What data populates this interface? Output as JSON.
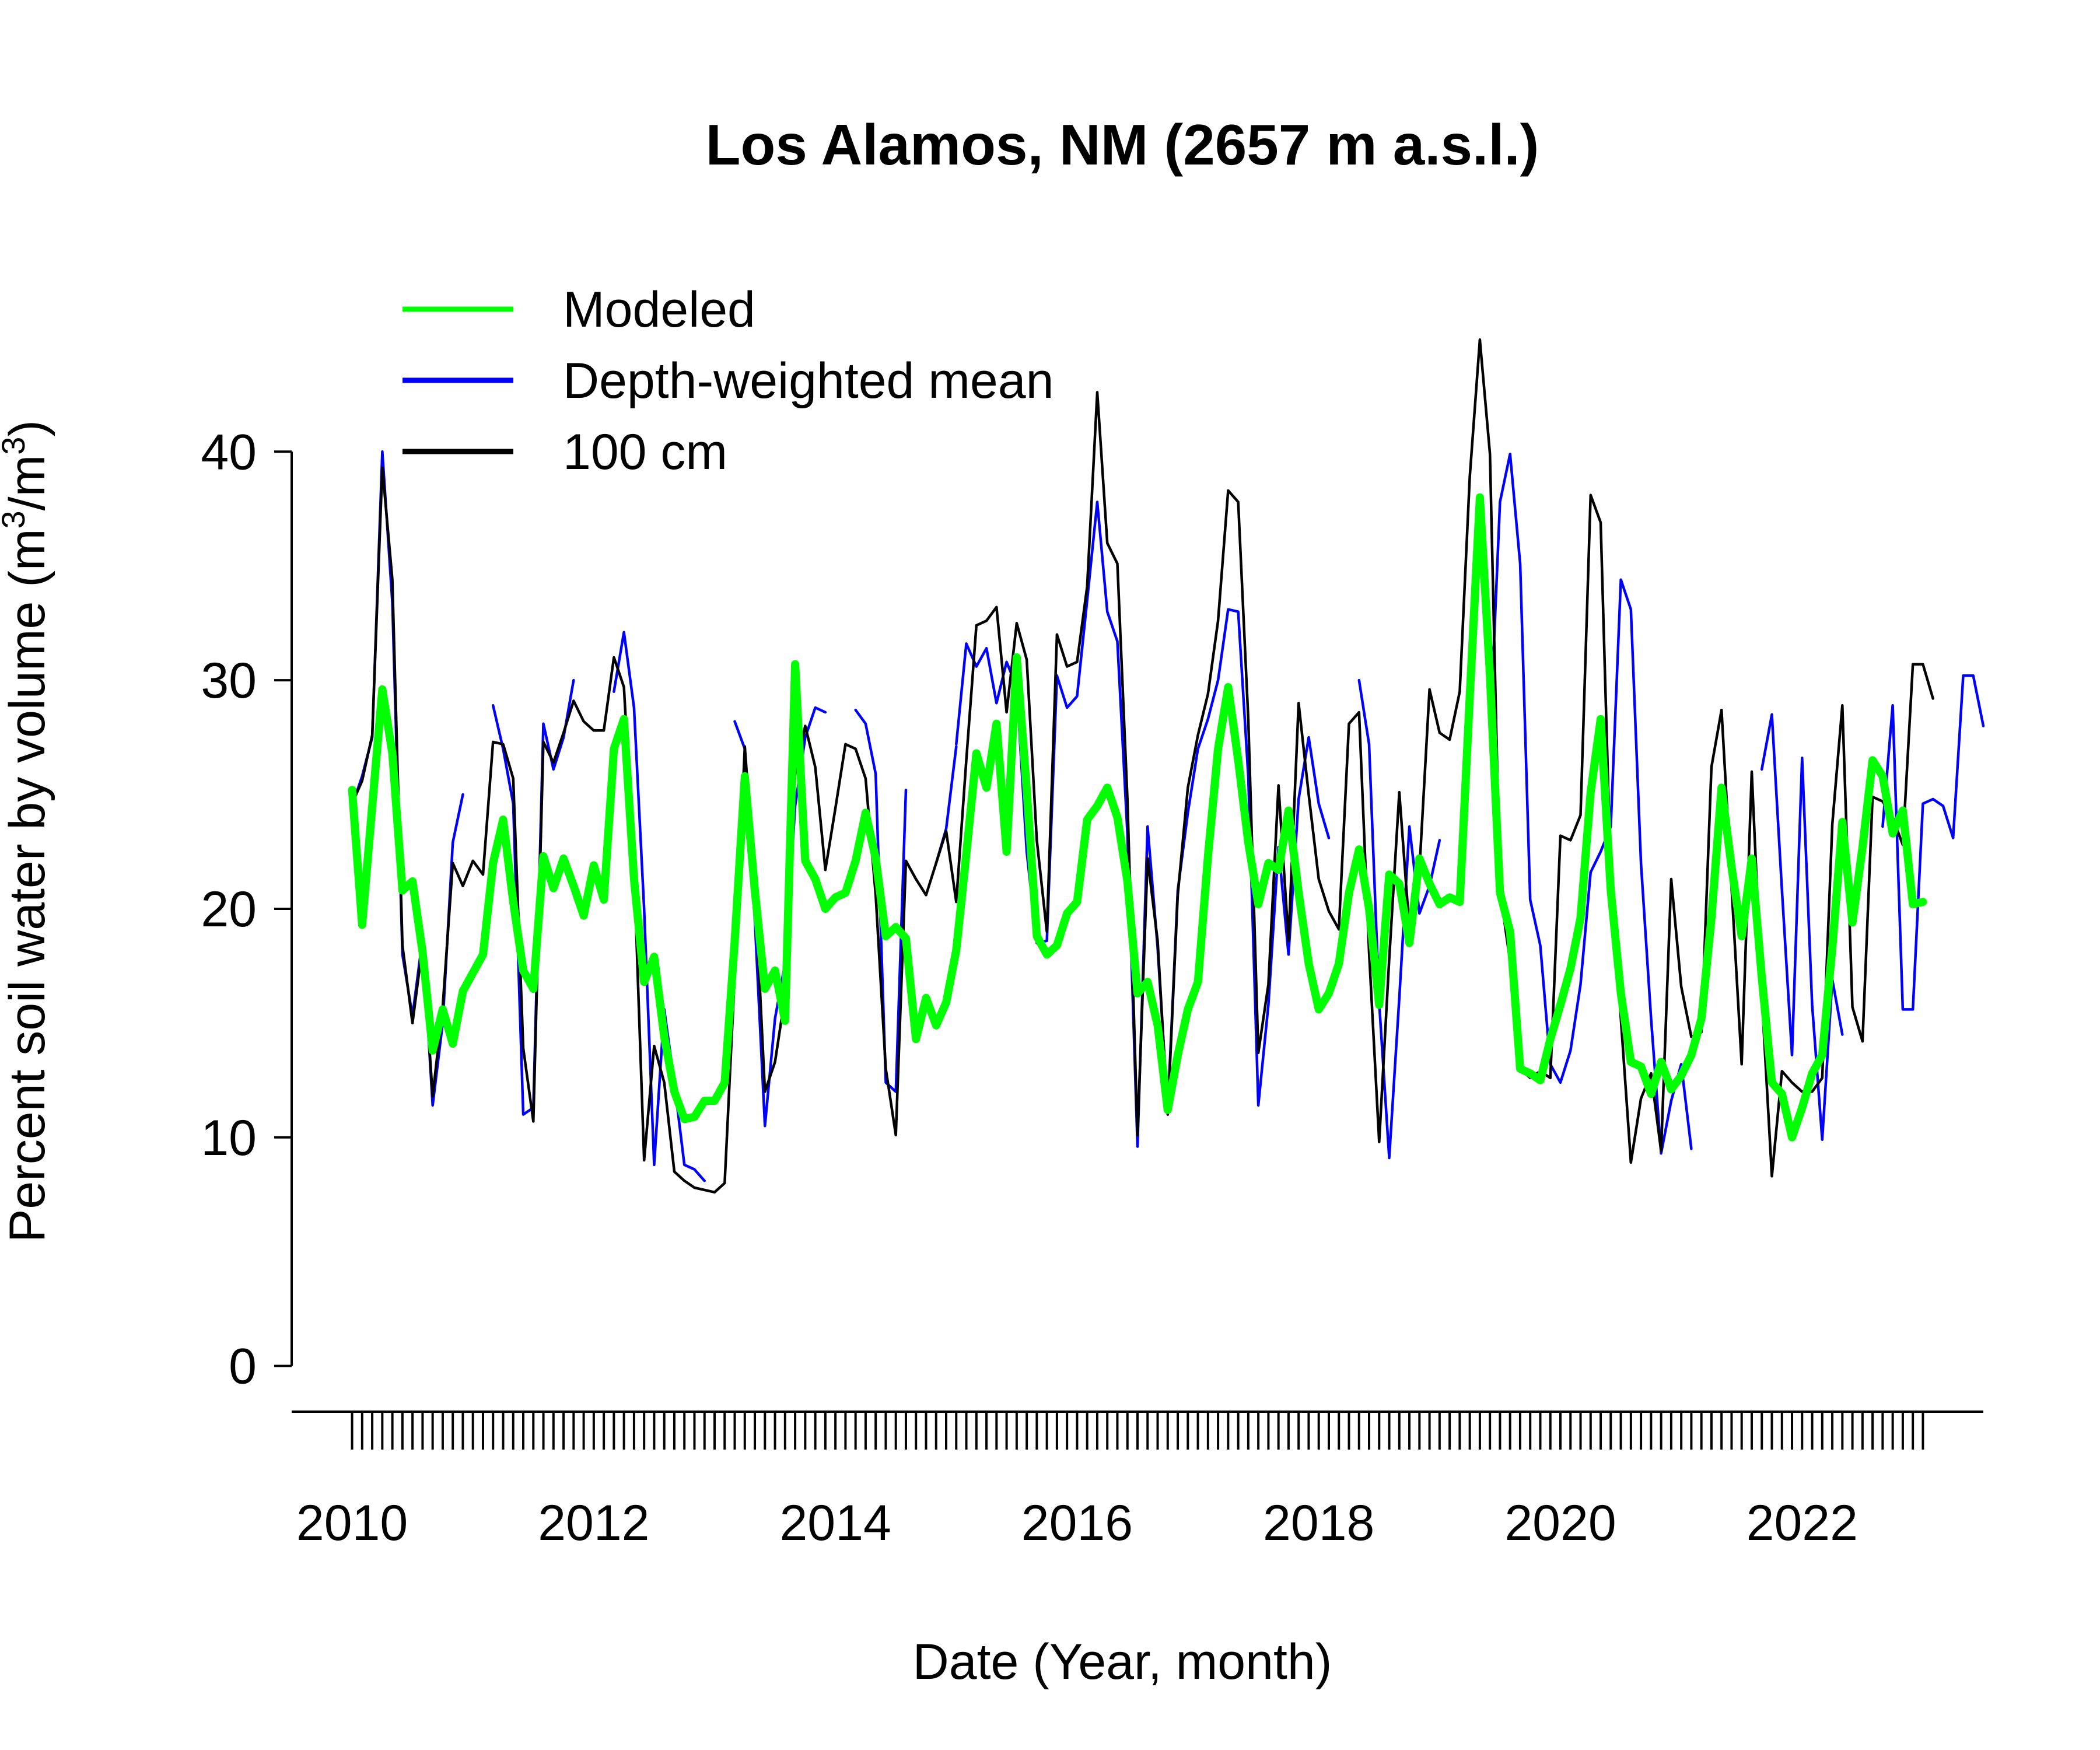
{
  "chart_data": {
    "type": "line",
    "title": "Los Alamos, NM (2657 m a.s.l.)",
    "xlabel": "Date (Year, month)",
    "ylabel": {
      "prefix": "Percent soil water by volume (m",
      "sup1": "3",
      "mid": "/m",
      "sup2": "3",
      "suffix": ")"
    },
    "xlim": [
      2009.5,
      2023.5
    ],
    "ylim": [
      -2,
      47
    ],
    "x_ticks": [
      2010,
      2012,
      2014,
      2016,
      2018,
      2020,
      2022
    ],
    "x_tick_labels": [
      "2010",
      "2012",
      "2014",
      "2016",
      "2018",
      "2020",
      "2022"
    ],
    "y_ticks": [
      0,
      10,
      20,
      30,
      40
    ],
    "y_tick_labels": [
      "0",
      "10",
      "20",
      "30",
      "40"
    ],
    "minor_x_ticks": {
      "start": 2010.0,
      "end": 2023.0,
      "step": 0.0833333333
    },
    "legend": {
      "position": "top-left"
    },
    "grid": false,
    "series": [
      {
        "name": "Modeled",
        "color": "#00ff00",
        "style": "thick",
        "x_start": 2010.0,
        "x_step": 0.0833333333,
        "values": [
          25.2,
          19.3,
          24.5,
          29.6,
          26.8,
          20.8,
          21.2,
          18.1,
          13.8,
          15.6,
          14.1,
          16.4,
          17.2,
          18.0,
          22.0,
          23.9,
          20.3,
          17.3,
          16.5,
          22.3,
          20.9,
          22.2,
          21.0,
          19.7,
          21.9,
          20.4,
          27.0,
          28.3,
          21.3,
          16.8,
          17.9,
          14.4,
          12.0,
          10.8,
          10.9,
          11.6,
          11.6,
          12.4,
          18.6,
          25.8,
          20.8,
          16.5,
          17.3,
          15.1,
          30.7,
          22.1,
          21.3,
          20.0,
          20.5,
          20.7,
          22.1,
          24.2,
          22.2,
          18.8,
          19.2,
          18.7,
          14.3,
          16.1,
          14.9,
          15.9,
          18.2,
          22.4,
          26.8,
          25.3,
          28.1,
          22.5,
          31.0,
          25.2,
          18.8,
          18.0,
          18.4,
          19.8,
          20.3,
          23.9,
          24.5,
          25.3,
          24.0,
          21.2,
          16.3,
          16.8,
          14.9,
          11.2,
          13.6,
          15.6,
          16.8,
          22.3,
          27.0,
          29.7,
          26.5,
          22.9,
          20.2,
          22.0,
          21.7,
          24.3,
          20.7,
          17.6,
          15.6,
          16.3,
          17.6,
          20.7,
          22.6,
          20.0,
          15.8,
          21.5,
          21.1,
          18.5,
          22.2,
          21.1,
          20.2,
          20.5,
          20.3,
          29.3,
          38.0,
          30.2,
          20.7,
          19.0,
          13.0,
          12.8,
          12.5,
          14.3,
          15.8,
          17.4,
          19.6,
          25.1,
          28.3,
          20.8,
          16.3,
          13.3,
          13.1,
          11.9,
          13.3,
          12.1,
          12.7,
          13.6,
          15.2,
          19.6,
          25.3,
          21.8,
          18.8,
          22.2,
          17.0,
          12.4,
          11.9,
          10.0,
          11.3,
          12.8,
          13.6,
          18.3,
          23.8,
          19.4,
          22.7,
          26.5,
          25.8,
          23.3,
          24.3,
          20.2,
          20.3
        ]
      },
      {
        "name": "Depth-weighted mean",
        "color": "#0000ff",
        "style": "thin",
        "x_start": 2010.0,
        "x_step": 0.0833333333,
        "values": [
          24.5,
          25.8,
          27.5,
          40.0,
          33.4,
          18.0,
          15.3,
          18.7,
          11.4,
          15.0,
          22.9,
          25.0,
          null,
          null,
          28.9,
          27.0,
          24.6,
          11.0,
          11.3,
          28.1,
          26.1,
          27.5,
          30.0,
          null,
          null,
          null,
          29.5,
          32.1,
          28.8,
          20.0,
          8.8,
          15.6,
          12.4,
          8.8,
          8.6,
          8.1,
          null,
          null,
          28.2,
          27.0,
          19.5,
          10.5,
          15.2,
          17.6,
          24.5,
          27.5,
          28.8,
          28.6,
          null,
          null,
          28.7,
          28.1,
          25.9,
          12.4,
          12.0,
          25.2,
          null,
          null,
          22.0,
          23.5,
          27.1,
          null,
          null,
          null,
          null,
          null,
          null,
          null,
          null,
          null,
          null,
          null,
          null,
          null,
          null,
          null,
          null,
          null,
          null,
          null,
          null,
          null,
          null,
          null,
          null,
          null,
          null,
          null,
          null,
          null,
          null,
          null,
          null,
          null,
          null,
          null,
          null,
          null,
          null,
          null,
          null,
          null,
          null,
          null,
          null,
          null,
          null,
          null,
          null,
          null,
          null,
          null,
          null,
          null,
          null,
          null,
          null,
          null,
          null,
          null,
          null,
          null,
          null,
          null,
          null,
          null,
          null,
          null,
          null,
          null,
          null,
          null,
          null,
          null,
          null,
          null,
          null,
          null,
          null,
          null,
          null,
          null,
          null,
          null,
          null,
          null,
          null,
          null,
          null,
          null,
          null,
          null,
          null,
          null,
          null,
          null
        ]
      },
      {
        "name": "Depth-weighted mean (2015-2023)",
        "legend": false,
        "color": "#0000ff",
        "style": "thin",
        "x_start": 2015.0,
        "x_step": 0.0833333333,
        "values": [
          27.2,
          31.6,
          30.6,
          31.4,
          29.0,
          30.8,
          29.7,
          22.5,
          18.5,
          18.6,
          30.2,
          28.8,
          29.3,
          33.5,
          37.8,
          33.0,
          31.7,
          23.3,
          9.6,
          23.6,
          18.3,
          11.2,
          20.8,
          24.2,
          27.0,
          28.3,
          30.0,
          33.1,
          33.0,
          25.8,
          11.4,
          15.8,
          22.7,
          18.0,
          24.8,
          27.5,
          24.6,
          23.1,
          null,
          null,
          30.0,
          27.2,
          15.9,
          9.1,
          16.1,
          23.6,
          19.8,
          21.0,
          23.0,
          null,
          null,
          null,
          null,
          27.5,
          37.8,
          39.9,
          35.1,
          20.4,
          18.4,
          13.2,
          12.4,
          13.8,
          16.7,
          21.6,
          22.5,
          23.6,
          34.4,
          33.1,
          22.0,
          15.2,
          9.3,
          11.6,
          13.2,
          9.5,
          null,
          null,
          null,
          null,
          null,
          null,
          26.1,
          28.5,
          20.8,
          13.6,
          26.6,
          15.8,
          9.9,
          16.9,
          14.5,
          null,
          null,
          null,
          23.6,
          28.9,
          15.6,
          15.6,
          24.6,
          24.8,
          24.5,
          23.1,
          30.2,
          30.2,
          28.0
        ]
      },
      {
        "name": "100 cm",
        "color": "#000000",
        "style": "thin",
        "x_start": 2010.0,
        "x_step": 0.0833333333,
        "values": [
          24.6,
          25.6,
          27.6,
          39.3,
          34.4,
          18.4,
          15.0,
          18.4,
          11.8,
          15.7,
          22.0,
          21.0,
          22.1,
          21.5,
          27.3,
          27.2,
          25.7,
          13.9,
          10.7,
          27.3,
          26.4,
          27.7,
          29.1,
          28.2,
          27.8,
          27.8,
          31.0,
          29.7,
          21.8,
          9.0,
          14.0,
          12.4,
          8.5,
          8.1,
          7.8,
          7.7,
          7.6,
          8.0,
          17.1,
          27.1,
          21.1,
          12.0,
          13.3,
          16.2,
          25.9,
          28.0,
          26.2,
          21.7,
          24.4,
          27.2,
          27.0,
          25.7,
          20.6,
          13.0,
          10.1,
          22.1,
          21.3,
          20.6,
          22.0,
          23.4,
          20.3,
          26.5,
          32.4,
          32.6,
          33.2,
          28.6,
          32.5,
          30.9,
          23.0,
          19.0,
          32.0,
          30.6,
          30.8,
          34.1,
          42.6,
          36.0,
          35.1,
          24.8,
          10.1,
          22.2,
          18.6,
          11.0,
          20.6,
          25.3,
          27.6,
          29.4,
          32.6,
          38.3,
          37.8,
          28.3,
          13.7,
          16.7,
          25.4,
          18.6,
          29.0,
          25.0,
          21.3,
          19.9,
          19.1,
          28.1,
          28.6,
          18.1,
          9.8,
          17.8,
          25.1,
          19.1,
          21.7,
          29.6,
          27.7,
          27.4,
          29.5,
          38.9,
          44.9,
          39.9,
          20.8,
          17.7,
          13.0,
          12.6,
          12.9,
          12.6,
          23.2,
          23.0,
          24.1,
          38.1,
          36.9,
          21.4,
          15.2,
          8.9,
          11.7,
          12.8,
          9.4,
          21.3,
          16.6,
          14.4,
          14.6,
          26.2,
          28.7,
          20.9,
          13.2,
          26.0,
          16.2,
          8.3,
          12.9,
          12.4,
          12.0,
          12.0,
          12.6,
          23.7,
          28.9,
          15.7,
          14.2,
          24.9,
          24.7,
          24.0,
          22.8,
          30.7,
          30.7,
          29.2
        ]
      }
    ]
  }
}
